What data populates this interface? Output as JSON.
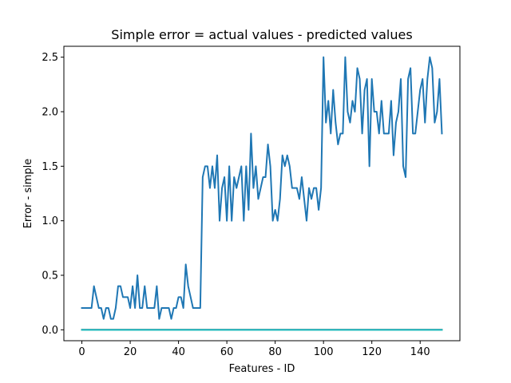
{
  "chart_data": {
    "type": "line",
    "title": "Simple error = actual values - predicted values",
    "xlabel": "Features - ID",
    "ylabel": "Error - simple",
    "xlim": [
      -7.45,
      156.45
    ],
    "ylim": [
      -0.1,
      2.6
    ],
    "xticks": [
      0,
      20,
      40,
      60,
      80,
      100,
      120,
      140
    ],
    "yticks": [
      0.0,
      0.5,
      1.0,
      1.5,
      2.0,
      2.5
    ],
    "xtick_labels": [
      "0",
      "20",
      "40",
      "60",
      "80",
      "100",
      "120",
      "140"
    ],
    "ytick_labels": [
      "0.0",
      "0.5",
      "1.0",
      "1.5",
      "2.0",
      "2.5"
    ],
    "grid": false,
    "series": [
      {
        "color": "#1f77b4",
        "x": [
          0,
          1,
          2,
          3,
          4,
          5,
          6,
          7,
          8,
          9,
          10,
          11,
          12,
          13,
          14,
          15,
          16,
          17,
          18,
          19,
          20,
          21,
          22,
          23,
          24,
          25,
          26,
          27,
          28,
          29,
          30,
          31,
          32,
          33,
          34,
          35,
          36,
          37,
          38,
          39,
          40,
          41,
          42,
          43,
          44,
          45,
          46,
          47,
          48,
          49,
          50,
          51,
          52,
          53,
          54,
          55,
          56,
          57,
          58,
          59,
          60,
          61,
          62,
          63,
          64,
          65,
          66,
          67,
          68,
          69,
          70,
          71,
          72,
          73,
          74,
          75,
          76,
          77,
          78,
          79,
          80,
          81,
          82,
          83,
          84,
          85,
          86,
          87,
          88,
          89,
          90,
          91,
          92,
          93,
          94,
          95,
          96,
          97,
          98,
          99,
          100,
          101,
          102,
          103,
          104,
          105,
          106,
          107,
          108,
          109,
          110,
          111,
          112,
          113,
          114,
          115,
          116,
          117,
          118,
          119,
          120,
          121,
          122,
          123,
          124,
          125,
          126,
          127,
          128,
          129,
          130,
          131,
          132,
          133,
          134,
          135,
          136,
          137,
          138,
          139,
          140,
          141,
          142,
          143,
          144,
          145,
          146,
          147,
          148,
          149
        ],
        "y": [
          0.2,
          0.2,
          0.2,
          0.2,
          0.2,
          0.4,
          0.3,
          0.2,
          0.2,
          0.1,
          0.2,
          0.2,
          0.1,
          0.1,
          0.2,
          0.4,
          0.4,
          0.3,
          0.3,
          0.3,
          0.2,
          0.4,
          0.2,
          0.5,
          0.2,
          0.2,
          0.4,
          0.2,
          0.2,
          0.2,
          0.2,
          0.4,
          0.1,
          0.2,
          0.2,
          0.2,
          0.2,
          0.1,
          0.2,
          0.2,
          0.3,
          0.3,
          0.2,
          0.6,
          0.4,
          0.3,
          0.2,
          0.2,
          0.2,
          0.2,
          1.4,
          1.5,
          1.5,
          1.3,
          1.5,
          1.3,
          1.6,
          1.0,
          1.3,
          1.4,
          1.0,
          1.5,
          1.0,
          1.4,
          1.3,
          1.4,
          1.5,
          1.0,
          1.5,
          1.1,
          1.8,
          1.3,
          1.5,
          1.2,
          1.3,
          1.4,
          1.4,
          1.7,
          1.5,
          1.0,
          1.1,
          1.0,
          1.2,
          1.6,
          1.5,
          1.6,
          1.5,
          1.3,
          1.3,
          1.3,
          1.2,
          1.4,
          1.2,
          1.0,
          1.3,
          1.2,
          1.3,
          1.3,
          1.1,
          1.3,
          2.5,
          1.9,
          2.1,
          1.8,
          2.2,
          1.9,
          1.7,
          1.8,
          1.8,
          2.5,
          2.0,
          1.9,
          2.1,
          2.0,
          2.4,
          2.3,
          1.8,
          2.2,
          2.3,
          1.5,
          2.3,
          2.0,
          2.0,
          1.8,
          2.1,
          1.8,
          1.8,
          1.8,
          2.1,
          1.6,
          1.9,
          2.0,
          2.3,
          1.5,
          1.4,
          2.3,
          2.4,
          1.8,
          1.8,
          2.0,
          2.2,
          2.3,
          1.9,
          2.3,
          2.5,
          2.4,
          1.9,
          2.0,
          2.3,
          1.8
        ]
      },
      {
        "color": "#ff7f0e",
        "x": [
          0,
          149
        ],
        "y": [
          0.0,
          0.0
        ]
      },
      {
        "color": "#2ca02c",
        "x": [
          0,
          149
        ],
        "y": [
          0.0,
          0.0
        ]
      },
      {
        "color": "#d62728",
        "x": [
          0,
          149
        ],
        "y": [
          0.0,
          0.0
        ]
      },
      {
        "color": "#9467bd",
        "x": [
          0,
          149
        ],
        "y": [
          0.0,
          0.0
        ]
      },
      {
        "color": "#8c564b",
        "x": [
          0,
          149
        ],
        "y": [
          0.0,
          0.0
        ]
      },
      {
        "color": "#e377c2",
        "x": [
          0,
          149
        ],
        "y": [
          0.0,
          0.0
        ]
      },
      {
        "color": "#7f7f7f",
        "x": [
          0,
          149
        ],
        "y": [
          0.0,
          0.0
        ]
      },
      {
        "color": "#bcbd22",
        "x": [
          0,
          149
        ],
        "y": [
          0.0,
          0.0
        ]
      },
      {
        "color": "#17becf",
        "x": [
          0,
          149
        ],
        "y": [
          0.0,
          0.0
        ]
      }
    ]
  }
}
